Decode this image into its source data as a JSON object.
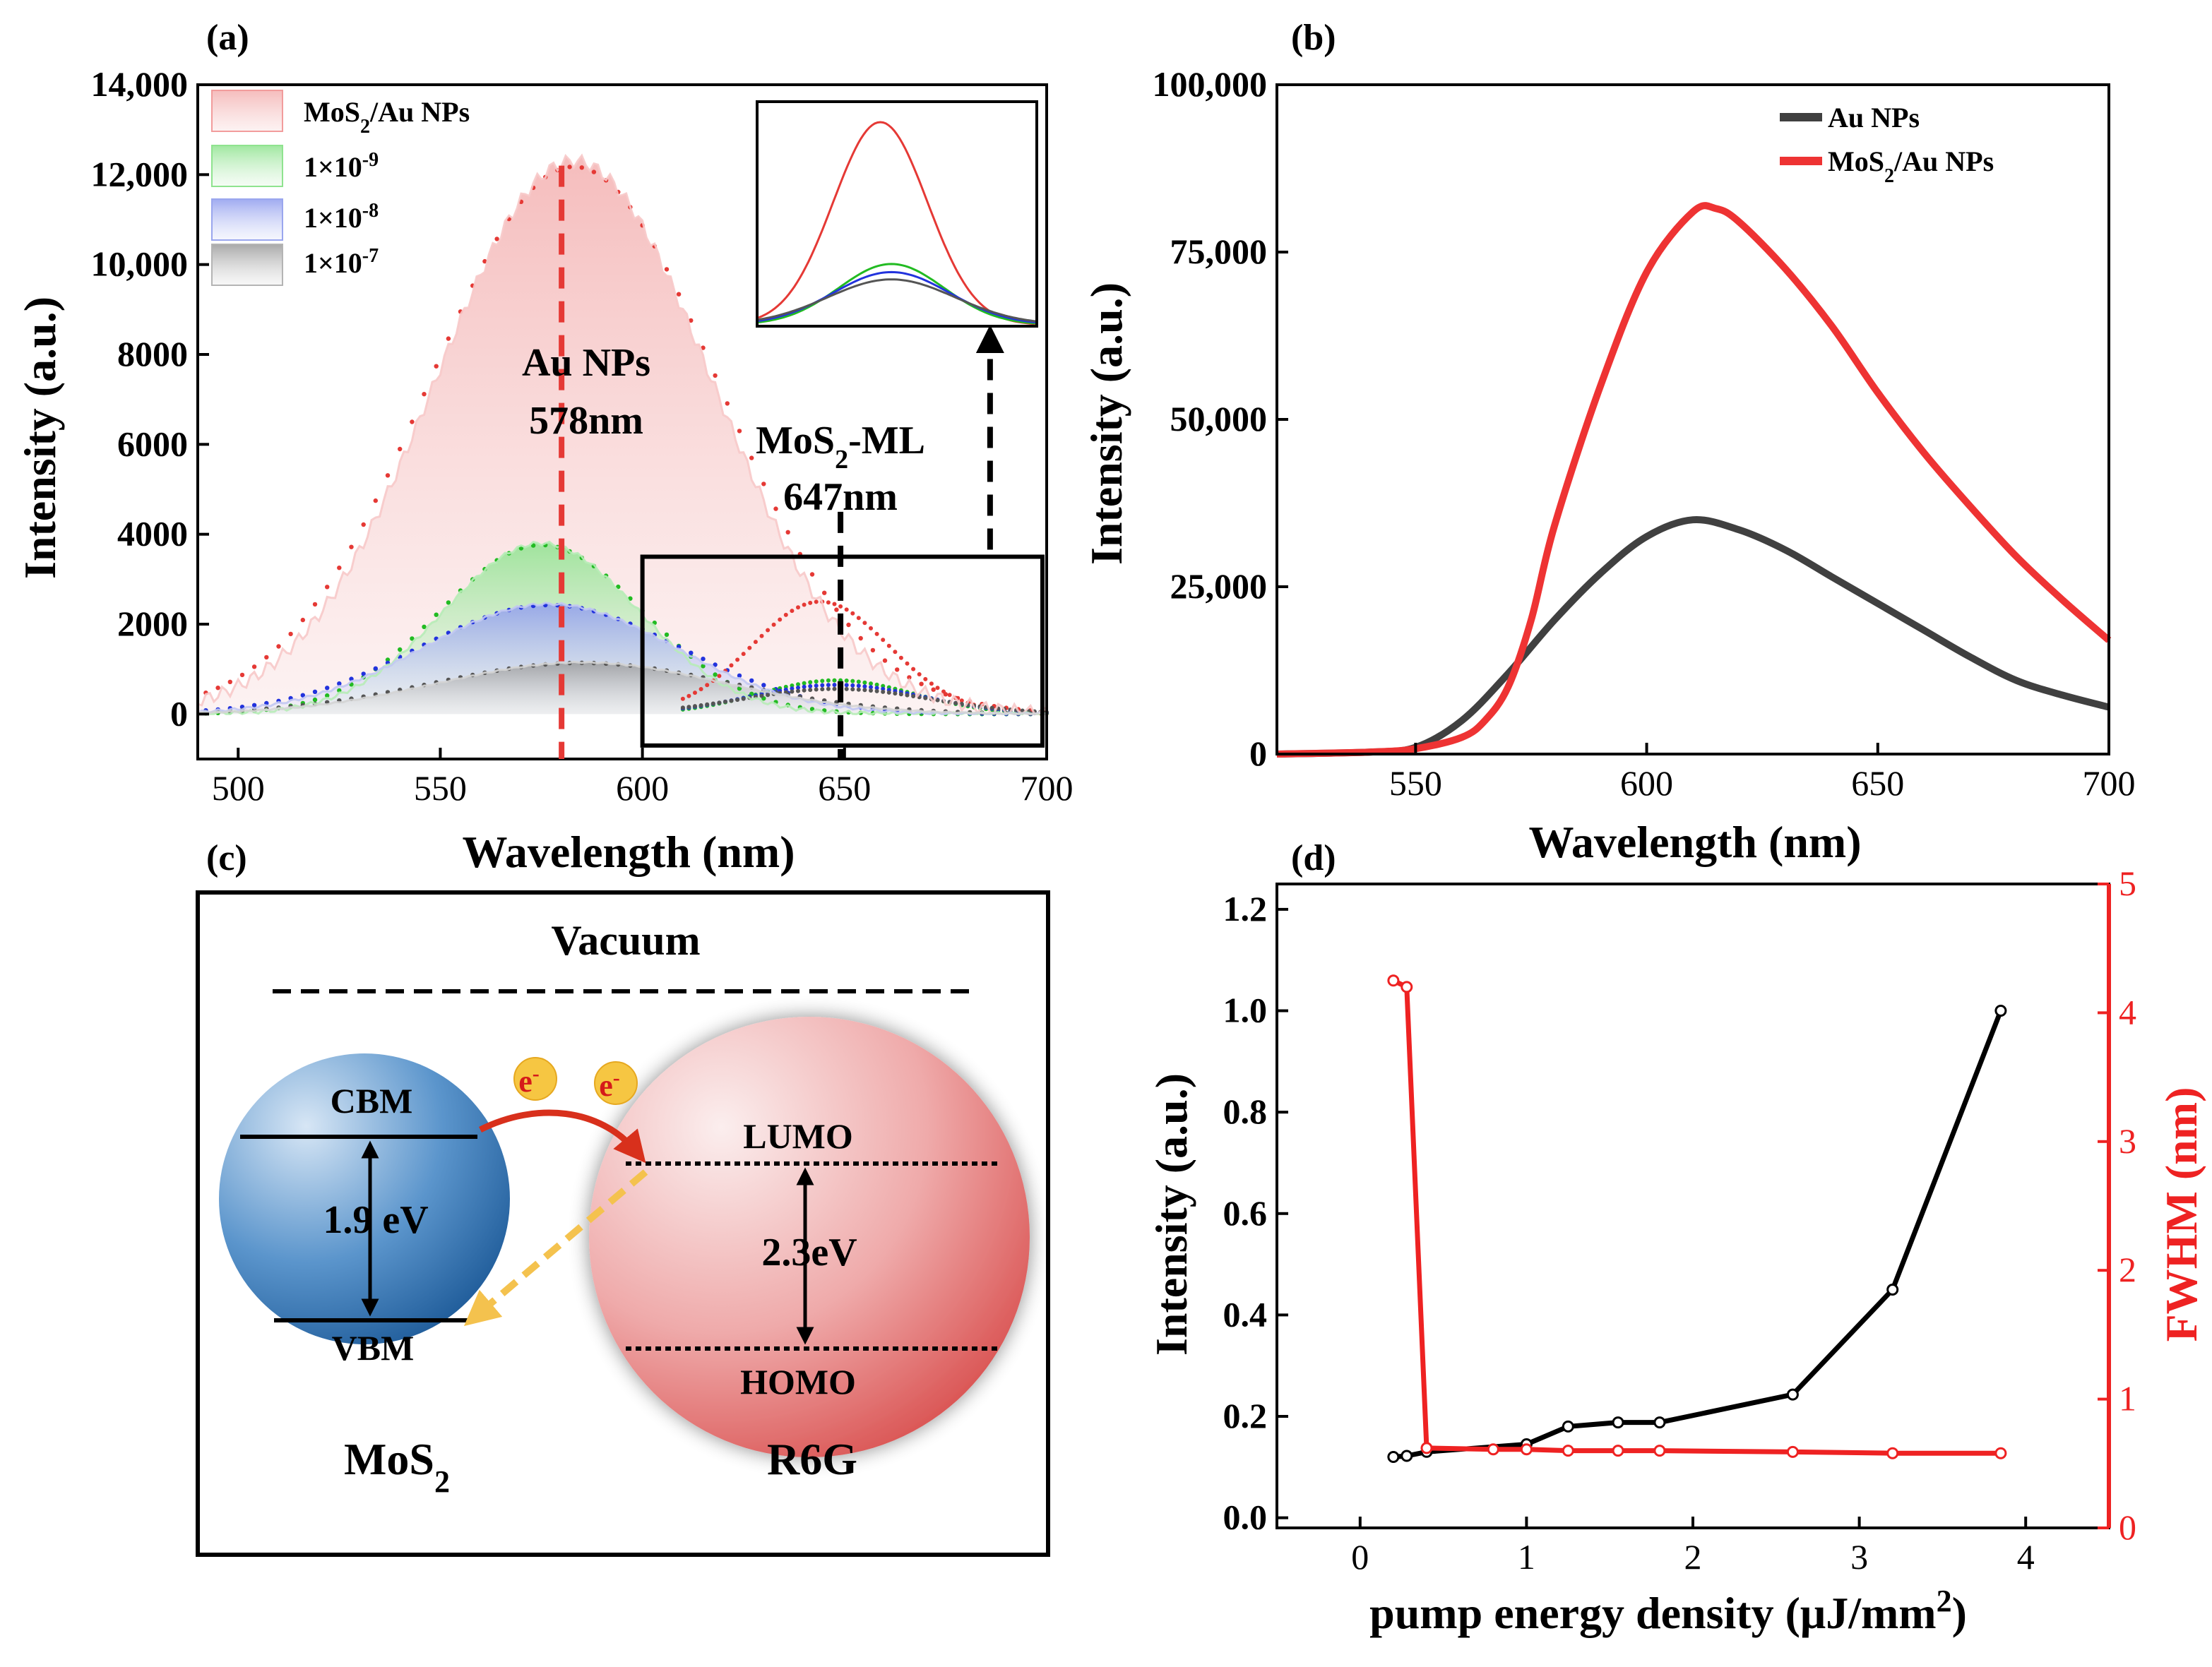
{
  "panels": {
    "a": {
      "label": "(a)"
    },
    "b": {
      "label": "(b)"
    },
    "c": {
      "label": "(c)"
    },
    "d": {
      "label": "(d)"
    }
  },
  "chart_data": [
    {
      "id": "a",
      "type": "line",
      "title": "",
      "xlabel": "Wavelength (nm)",
      "ylabel": "Intensity (a.u.)",
      "xlim": [
        490,
        700
      ],
      "ylim": [
        -1000,
        14000
      ],
      "xticks": [
        500,
        550,
        600,
        650,
        700
      ],
      "xtick_labels": [
        "500",
        "550",
        "600",
        "650",
        "700"
      ],
      "yticks": [
        0,
        2000,
        4000,
        6000,
        8000,
        10000,
        12000,
        14000
      ],
      "ytick_labels": [
        "0",
        "2000",
        "4000",
        "6000",
        "8000",
        "10,000",
        "12,000",
        "14,000"
      ],
      "legend": [
        {
          "name": "MoS",
          "sub": "2",
          "suffix": "/Au NPs",
          "color": "#f29c9c"
        },
        {
          "name": "1×10",
          "sup": "-9",
          "color": "#8fe38f"
        },
        {
          "name": "1×10",
          "sup": "-8",
          "color": "#9aa6ee"
        },
        {
          "name": "1×10",
          "sup": "-7",
          "color": "#b4b4b4"
        }
      ],
      "series": [
        {
          "name": "MoS2/Au NPs",
          "color": "#e53935",
          "fill": "#f7c9c9",
          "center": 583,
          "sigma": 34,
          "peak": 12300
        },
        {
          "name": "1×10-9",
          "color": "#22bb22",
          "fill": "#b7ecb7",
          "center": 575,
          "sigma": 24,
          "peak": 3800
        },
        {
          "name": "1×10-8",
          "color": "#2233dd",
          "fill": "#c2c8f2",
          "center": 577,
          "sigma": 31,
          "peak": 2450
        },
        {
          "name": "1×10-7",
          "color": "#555555",
          "fill": "#d4d4d4",
          "center": 585,
          "sigma": 35,
          "peak": 1150
        }
      ],
      "ml_peaks": [
        {
          "color": "#e53935",
          "center": 644,
          "sigma": 17,
          "peak": 2500
        },
        {
          "color": "#22bb22",
          "center": 648,
          "sigma": 19,
          "peak": 750
        },
        {
          "color": "#2233dd",
          "center": 648,
          "sigma": 21,
          "peak": 650
        },
        {
          "color": "#555555",
          "center": 648,
          "sigma": 23,
          "peak": 560
        }
      ],
      "annotations": [
        {
          "text": "Au NPs",
          "line2": "578nm",
          "x": 580
        },
        {
          "text": "MoS",
          "sub": "2",
          "suffix": "-ML",
          "line2": "647nm",
          "x": 649
        }
      ]
    },
    {
      "id": "b",
      "type": "line",
      "xlabel": "Wavelength (nm)",
      "ylabel": "Intensity (a.u.)",
      "xlim": [
        520,
        700
      ],
      "ylim": [
        0,
        100000
      ],
      "xticks": [
        550,
        600,
        650,
        700
      ],
      "xtick_labels": [
        "550",
        "600",
        "650",
        "700"
      ],
      "yticks": [
        0,
        25000,
        50000,
        75000,
        100000
      ],
      "ytick_labels": [
        "0",
        "25,000",
        "50,000",
        "75,000",
        "100,000"
      ],
      "legend": [
        {
          "name": "Au NPs",
          "color": "#404040"
        },
        {
          "name": "MoS",
          "sub": "2",
          "suffix": "/Au NPs",
          "color": "#ee3333"
        }
      ],
      "series": [
        {
          "name": "Au NPs",
          "color": "#404040",
          "x": [
            520,
            540,
            550,
            560,
            570,
            580,
            590,
            600,
            610,
            620,
            630,
            640,
            650,
            660,
            670,
            680,
            690,
            700
          ],
          "y": [
            0,
            300,
            1000,
            5000,
            12000,
            20000,
            27000,
            32500,
            35000,
            33500,
            30500,
            26500,
            22500,
            18500,
            14500,
            11000,
            8800,
            7000
          ]
        },
        {
          "name": "MoS2/Au NPs",
          "color": "#ee3333",
          "x": [
            520,
            540,
            550,
            560,
            565,
            570,
            575,
            580,
            590,
            600,
            610,
            615,
            620,
            630,
            640,
            650,
            660,
            670,
            680,
            690,
            700
          ],
          "y": [
            0,
            300,
            800,
            2500,
            5000,
            10000,
            20000,
            34000,
            55000,
            72000,
            81000,
            81500,
            79500,
            72500,
            64000,
            54000,
            45000,
            37000,
            29500,
            23000,
            17000
          ]
        }
      ]
    },
    {
      "id": "c",
      "type": "diagram",
      "title": "Vacuum",
      "left": {
        "name": "MoS",
        "sub": "2",
        "top": "CBM",
        "bottom": "VBM",
        "gap": "1.9 eV",
        "color": "#3a78b8"
      },
      "right": {
        "name": "R6G",
        "top": "LUMO",
        "bottom": "HOMO",
        "gap": "2.3eV",
        "color": "#e06e6e"
      },
      "electron": "e",
      "electron_sup": "-"
    },
    {
      "id": "d",
      "type": "line",
      "xlabel": "pump energy density (μJ/mm",
      "xlabel_sup": "2",
      "xlabel_end": ")",
      "ylabel": "Intensity (a.u.)",
      "y2label": "FWHM (nm)",
      "xlim": [
        -0.5,
        4.5
      ],
      "ylim": [
        -0.02,
        1.25
      ],
      "y2lim": [
        0,
        5
      ],
      "xticks": [
        0,
        1,
        2,
        3,
        4
      ],
      "xtick_labels": [
        "0",
        "1",
        "2",
        "3",
        "4"
      ],
      "yticks": [
        0,
        0.2,
        0.4,
        0.6,
        0.8,
        1.0,
        1.2
      ],
      "ytick_labels": [
        "0.0",
        "0.2",
        "0.4",
        "0.6",
        "0.8",
        "1.0",
        "1.2"
      ],
      "y2ticks": [
        0,
        1,
        2,
        3,
        4,
        5
      ],
      "y2tick_labels": [
        "0",
        "1",
        "2",
        "3",
        "4",
        "5"
      ],
      "series": [
        {
          "name": "Intensity",
          "axis": "left",
          "color": "#000000",
          "x": [
            0.2,
            0.28,
            0.4,
            1.0,
            1.25,
            1.55,
            1.8,
            2.6,
            3.2,
            3.85
          ],
          "y": [
            0.12,
            0.122,
            0.13,
            0.145,
            0.18,
            0.188,
            0.188,
            0.243,
            0.45,
            1.0
          ]
        },
        {
          "name": "FWHM",
          "axis": "right",
          "color": "#ee2222",
          "x": [
            0.2,
            0.28,
            0.4,
            0.8,
            1.0,
            1.25,
            1.55,
            1.8,
            2.6,
            3.2,
            3.85
          ],
          "y": [
            4.25,
            4.2,
            0.62,
            0.61,
            0.61,
            0.6,
            0.6,
            0.6,
            0.59,
            0.58,
            0.58
          ]
        }
      ]
    }
  ]
}
